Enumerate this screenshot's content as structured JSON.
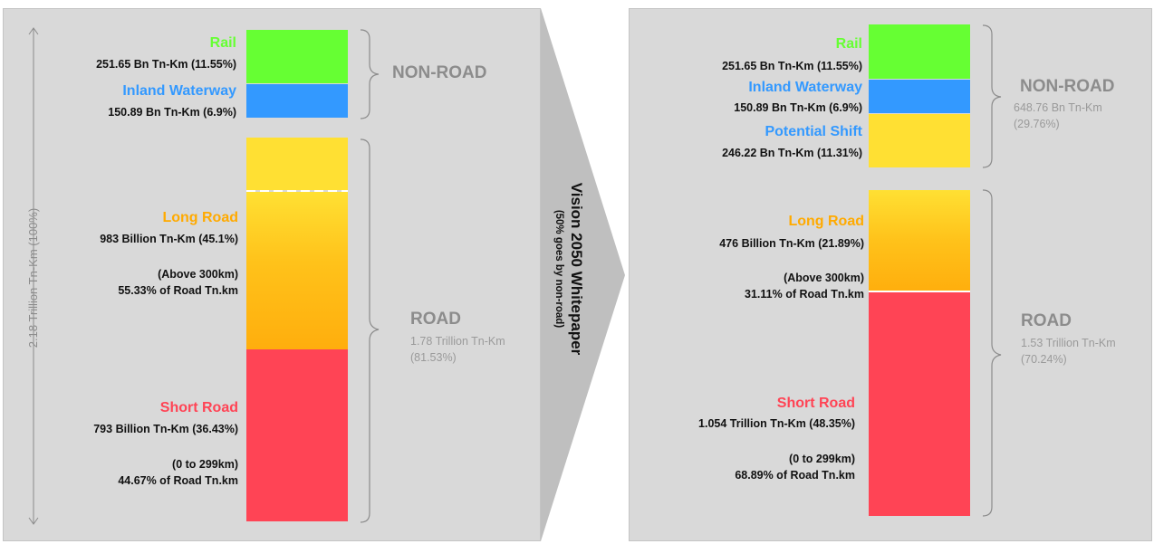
{
  "left": {
    "total_label": "2.18 Trillion Tn-Km  (100%)",
    "rail": {
      "title": "Rail",
      "value": "251.65 Bn Tn-Km  (11.55%)"
    },
    "waterway": {
      "title": "Inland Waterway",
      "value": "150.89 Bn Tn-Km  (6.9%)"
    },
    "long_road": {
      "title": "Long Road",
      "value": "983 Billion Tn-Km  (45.1%)",
      "note1": "(Above 300km)",
      "note2": "55.33% of  Road Tn.km"
    },
    "short_road": {
      "title": "Short Road",
      "value": "793 Billion Tn-Km  (36.43%)",
      "note1": "(0 to 299km)",
      "note2": "44.67% of  Road Tn.km"
    },
    "non_road_group": {
      "name": "NON-ROAD"
    },
    "road_group": {
      "name": "ROAD",
      "sub1": "1.78 Trillion Tn-Km",
      "sub2": "(81.53%)"
    }
  },
  "arrow": {
    "title": "Vision 2050 Whitepaper",
    "subtitle": "(50% goes by non-road)"
  },
  "right": {
    "rail": {
      "title": "Rail",
      "value": "251.65 Bn Tn-Km  (11.55%)"
    },
    "waterway": {
      "title": "Inland Waterway",
      "value": "150.89 Bn Tn-Km  (6.9%)"
    },
    "potential": {
      "title": "Potential Shift",
      "value": "246.22 Bn Tn-Km  (11.31%)"
    },
    "long_road": {
      "title": "Long Road",
      "value": "476 Billion Tn-Km  (21.89%)",
      "note1": "(Above 300km)",
      "note2": "31.11% of  Road Tn.km"
    },
    "short_road": {
      "title": "Short Road",
      "value": "1.054 Trillion Tn-Km  (48.35%)",
      "note1": "(0 to 299km)",
      "note2": "68.89% of  Road Tn.km"
    },
    "non_road_group": {
      "name": "NON-ROAD",
      "sub1": "648.76 Bn Tn-Km",
      "sub2": "(29.76%)"
    },
    "road_group": {
      "name": "ROAD",
      "sub1": "1.53 Trillion Tn-Km",
      "sub2": "(70.24%)"
    }
  },
  "colors": {
    "rail": "#66ff33",
    "waterway": "#3399ff",
    "potential": "#ffe033",
    "long_road_title": "#ffaa00",
    "short_road": "#ff4455",
    "panel": "#d9d9d9",
    "arrow": "#bfbfbf"
  }
}
